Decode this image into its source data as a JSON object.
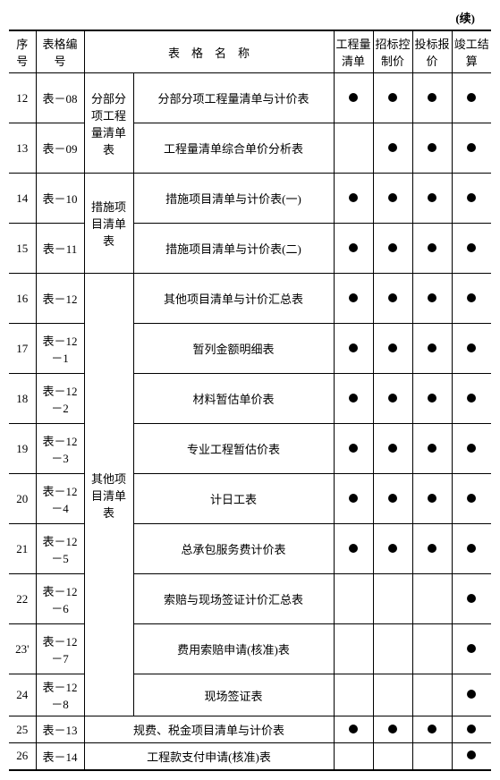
{
  "continued_label": "(续)",
  "mark_true_class": "dot",
  "headers": {
    "seq": "序号",
    "code": "表格编号",
    "name": "表　格　名　称",
    "m1": "工程量清单",
    "m2": "招标控制价",
    "m3": "投标报价",
    "m4": "竣工结算"
  },
  "groups": [
    {
      "category": "分部分项工程量清单表",
      "rows": [
        {
          "seq": "12",
          "code": "表－08",
          "name": "分部分项工程量清单与计价表",
          "m": [
            true,
            true,
            true,
            true
          ]
        },
        {
          "seq": "13",
          "code": "表－09",
          "name": "工程量清单综合单价分析表",
          "m": [
            false,
            true,
            true,
            true
          ]
        }
      ]
    },
    {
      "category": "措施项目清单表",
      "rows": [
        {
          "seq": "14",
          "code": "表－10",
          "name": "措施项目清单与计价表(一)",
          "m": [
            true,
            true,
            true,
            true
          ]
        },
        {
          "seq": "15",
          "code": "表－11",
          "name": "措施项目清单与计价表(二)",
          "m": [
            true,
            true,
            true,
            true
          ]
        }
      ]
    },
    {
      "category": "其他项目清单表",
      "rows": [
        {
          "seq": "16",
          "code": "表－12",
          "name": "其他项目清单与计价汇总表",
          "m": [
            true,
            true,
            true,
            true
          ]
        },
        {
          "seq": "17",
          "code": "表－12－1",
          "name": "暂列金额明细表",
          "m": [
            true,
            true,
            true,
            true
          ]
        },
        {
          "seq": "18",
          "code": "表－12－2",
          "name": "材料暂估单价表",
          "m": [
            true,
            true,
            true,
            true
          ]
        },
        {
          "seq": "19",
          "code": "表－12－3",
          "name": "专业工程暂估价表",
          "m": [
            true,
            true,
            true,
            true
          ]
        },
        {
          "seq": "20",
          "code": "表－12－4",
          "name": "计日工表",
          "m": [
            true,
            true,
            true,
            true
          ]
        },
        {
          "seq": "21",
          "code": "表－12－5",
          "name": "总承包服务费计价表",
          "m": [
            true,
            true,
            true,
            true
          ]
        },
        {
          "seq": "22",
          "code": "表－12－6",
          "name": "索赔与现场签证计价汇总表",
          "m": [
            false,
            false,
            false,
            true
          ]
        },
        {
          "seq": "23'",
          "code": "表－12－7",
          "name": "费用索赔申请(核准)表",
          "m": [
            false,
            false,
            false,
            true
          ]
        },
        {
          "seq": "24",
          "code": "表－12－8",
          "name": "现场签证表",
          "m": [
            false,
            false,
            false,
            true
          ],
          "short": true
        }
      ]
    },
    {
      "category": null,
      "rows": [
        {
          "seq": "25",
          "code": "表－13",
          "name": "规费、税金项目清单与计价表",
          "m": [
            true,
            true,
            true,
            true
          ],
          "full": true,
          "short": true
        },
        {
          "seq": "26",
          "code": "表－14",
          "name": "工程款支付申请(核准)表",
          "m": [
            false,
            false,
            false,
            true
          ],
          "full": true,
          "short": true
        }
      ]
    }
  ]
}
